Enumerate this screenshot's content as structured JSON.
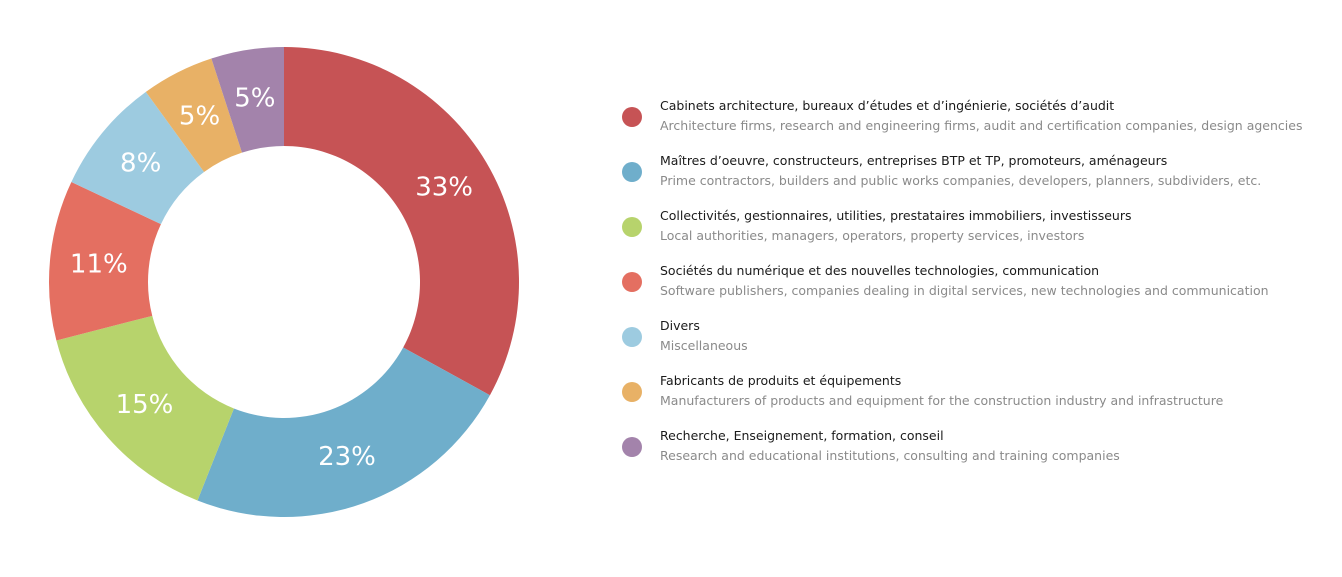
{
  "chart_data": {
    "type": "pie",
    "donut": true,
    "slices": [
      {
        "label_fr": "Cabinets architecture, bureaux d’études et d’ingénierie, sociétés d’audit",
        "label_en": "Architecture firms, research and engineering firms, audit and certification companies, design agencies",
        "value": 33,
        "display": "33%",
        "color": "#c65355"
      },
      {
        "label_fr": "Maîtres d’oeuvre, constructeurs, entreprises BTP et TP, promoteurs, aménageurs",
        "label_en": "Prime contractors, builders and public works companies, developers, planners, subdividers, etc.",
        "value": 23,
        "display": "23%",
        "color": "#6faecb"
      },
      {
        "label_fr": "Collectivités, gestionnaires, utilities, prestataires immobiliers, investisseurs",
        "label_en": "Local authorities, managers, operators, property services, investors",
        "value": 15,
        "display": "15%",
        "color": "#b7d36c"
      },
      {
        "label_fr": "Sociétés du numérique et des nouvelles technologies, communication",
        "label_en": "Software publishers, companies dealing in digital services, new technologies and communication",
        "value": 11,
        "display": "11%",
        "color": "#e46f61"
      },
      {
        "label_fr": "Divers",
        "label_en": "Miscellaneous",
        "value": 8,
        "display": "8%",
        "color": "#9dcbe0"
      },
      {
        "label_fr": "Fabricants de produits et équipements",
        "label_en": "Manufacturers of products and equipment for the construction industry and infrastructure",
        "value": 5,
        "display": "5%",
        "color": "#e8b166"
      },
      {
        "label_fr": "Recherche, Enseignement, formation, conseil",
        "label_en": "Research and educational institutions, consulting and training companies",
        "value": 5,
        "display": "5%",
        "color": "#a383ab"
      }
    ],
    "legend_position": "right"
  }
}
